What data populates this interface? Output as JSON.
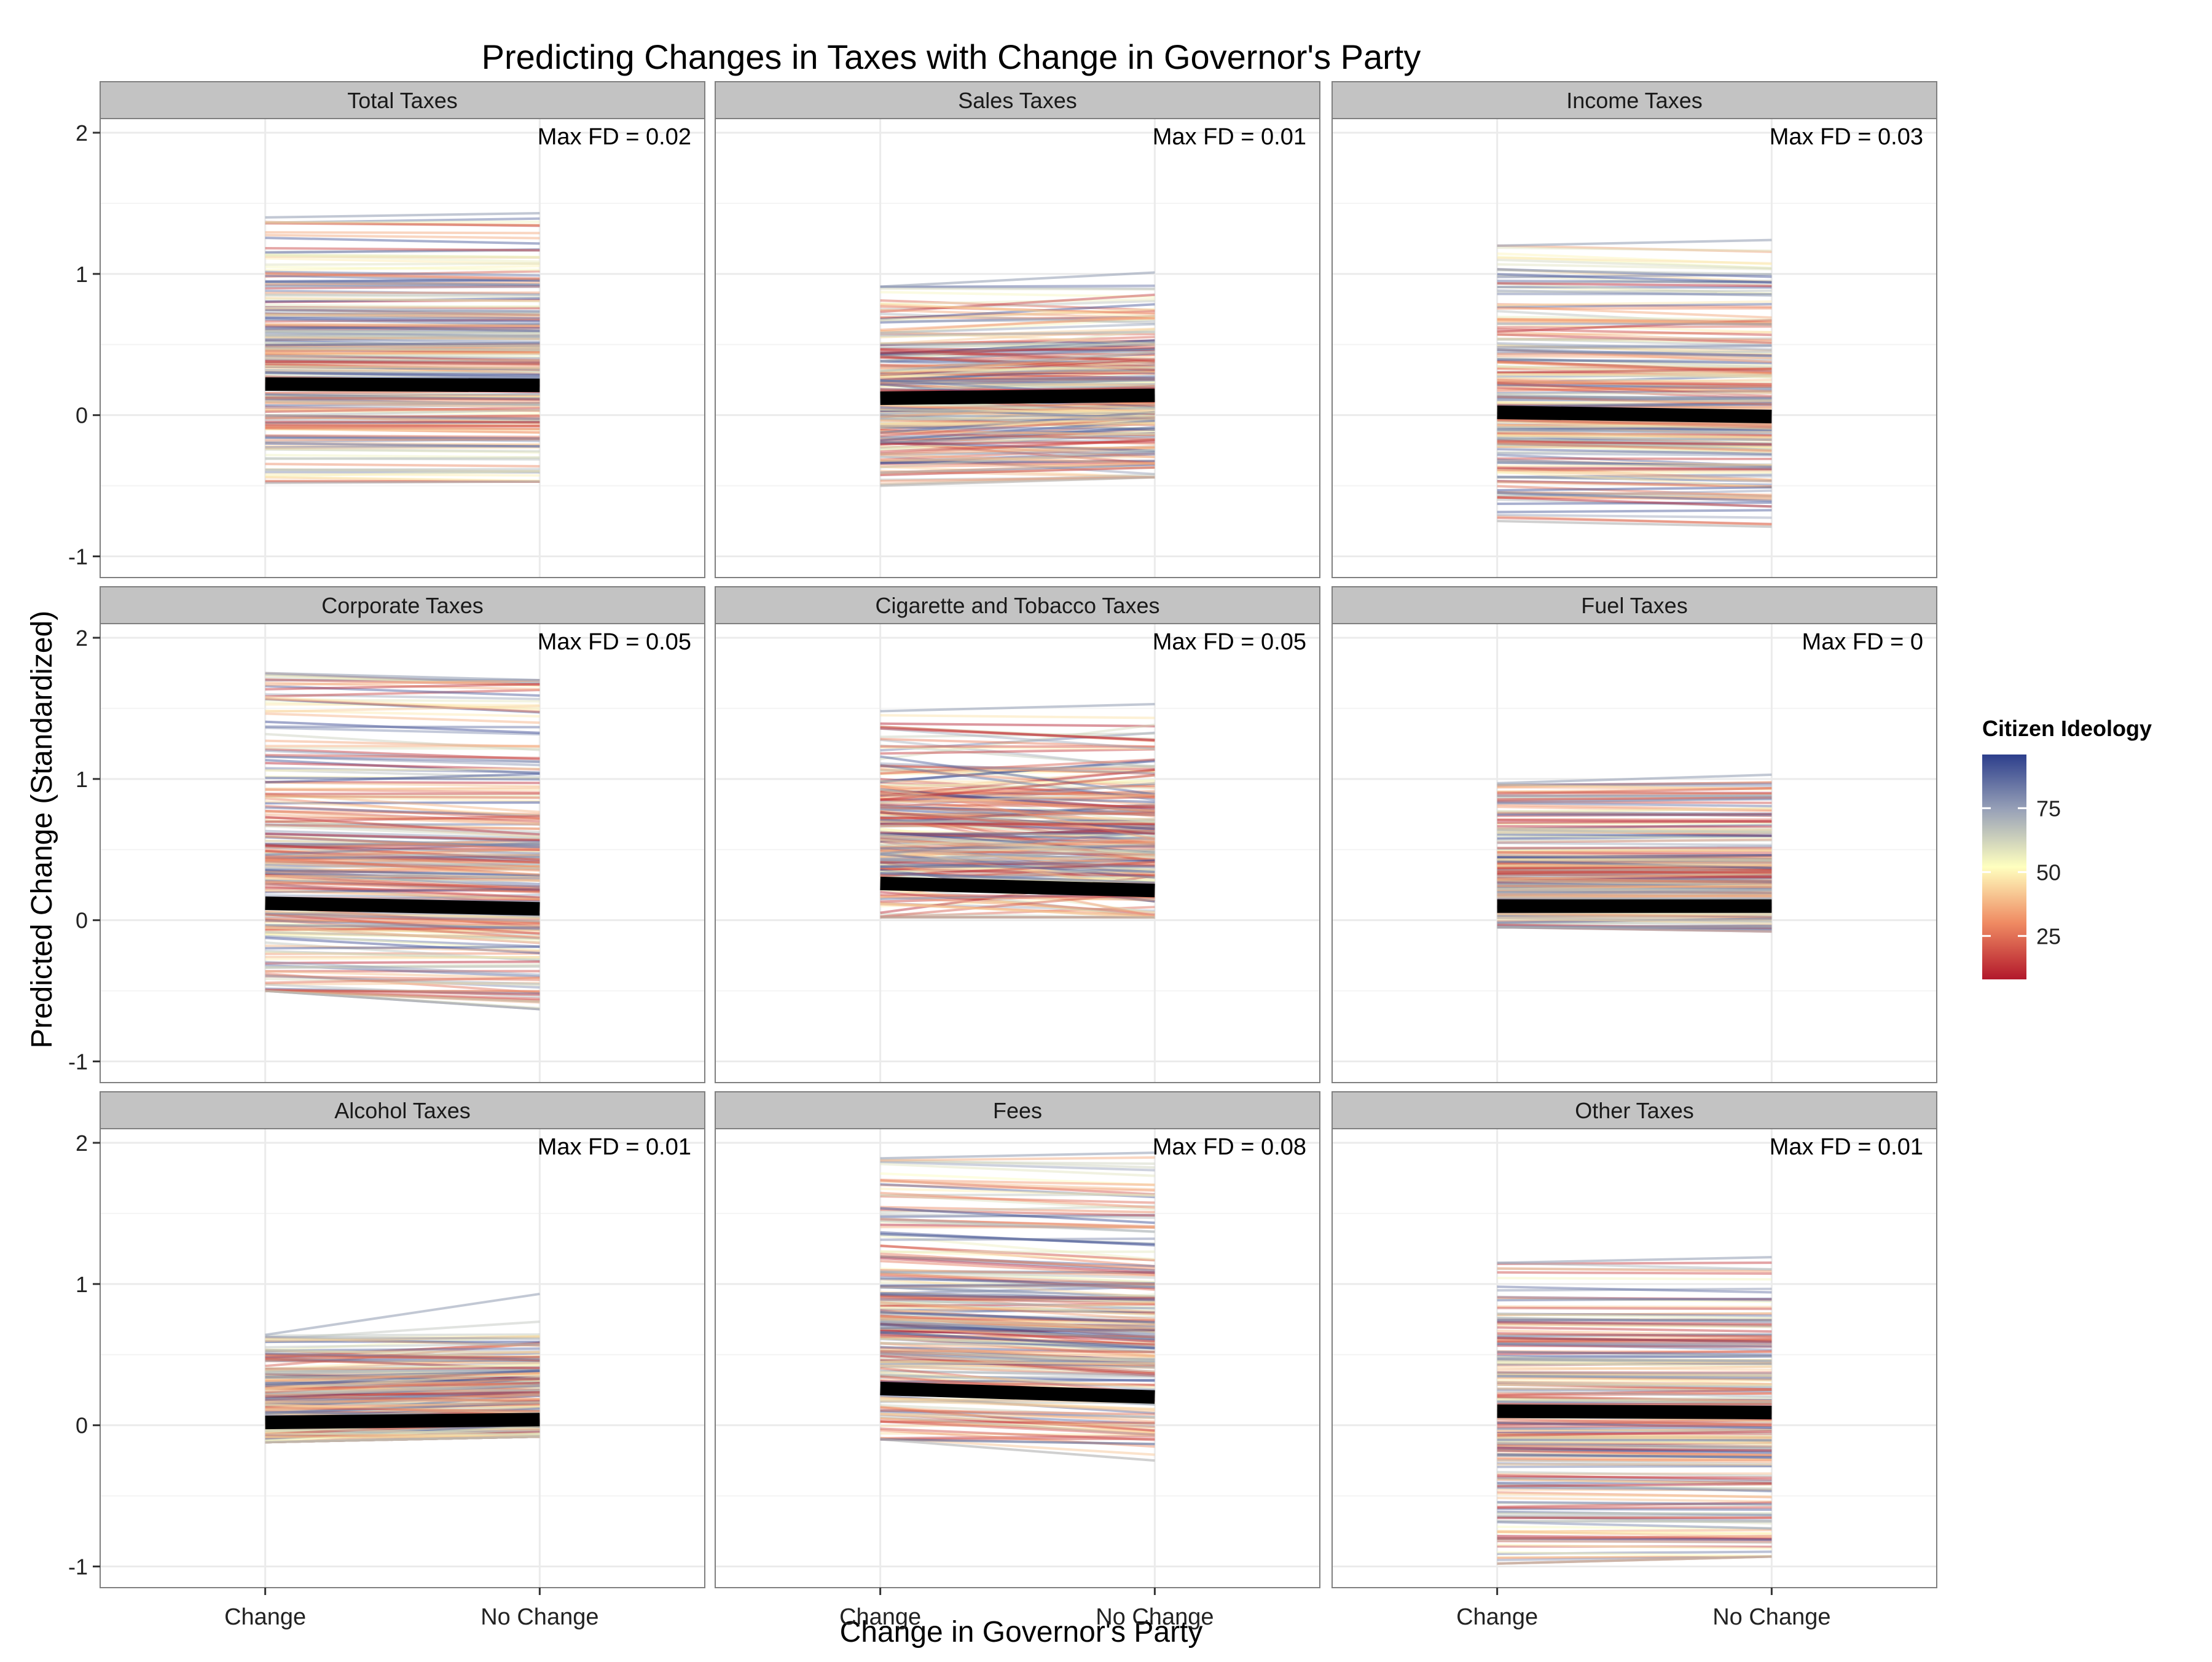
{
  "chart_data": {
    "type": "line",
    "title": "Predicting Changes in Taxes with Change in Governor's Party",
    "xlabel": "Change in Governor's Party",
    "ylabel": "Predicted Change (Standardized)",
    "x_categories": [
      "Change",
      "No Change"
    ],
    "ylim": [
      -1.15,
      2.1
    ],
    "y_ticks": [
      -1,
      0,
      1,
      2
    ],
    "grid": true,
    "legend": {
      "title": "Citizen Ideology",
      "placement": "right",
      "range": [
        8,
        96
      ],
      "ticks": [
        25,
        50,
        75
      ],
      "color_low": "#b2182b",
      "color_mid": "#ffffbf",
      "color_high": "#2c3e8c"
    },
    "panels": [
      {
        "title": "Total Taxes",
        "annotation": "Max FD = 0.02",
        "mean_line": [
          0.22,
          0.21
        ],
        "spread": {
          "change": [
            -0.48,
            1.4
          ],
          "no_change": [
            -0.47,
            1.43
          ]
        },
        "slope_sd": 0.02,
        "dense_center": 0.45
      },
      {
        "title": "Sales Taxes",
        "annotation": "Max FD = 0.01",
        "mean_line": [
          0.12,
          0.14
        ],
        "spread": {
          "change": [
            -0.5,
            0.91
          ],
          "no_change": [
            -0.44,
            1.01
          ]
        },
        "slope_sd": 0.07,
        "dense_center": 0.15
      },
      {
        "title": "Income Taxes",
        "annotation": "Max FD = 0.03",
        "mean_line": [
          0.02,
          -0.01
        ],
        "spread": {
          "change": [
            -0.75,
            1.2
          ],
          "no_change": [
            -0.79,
            1.24
          ]
        },
        "slope_sd": 0.03,
        "dense_center": 0.1
      },
      {
        "title": "Corporate Taxes",
        "annotation": "Max FD = 0.05",
        "mean_line": [
          0.12,
          0.08
        ],
        "spread": {
          "change": [
            -0.5,
            1.75
          ],
          "no_change": [
            -0.63,
            1.7
          ]
        },
        "slope_sd": 0.05,
        "dense_center": 0.25
      },
      {
        "title": "Cigarette and Tobacco Taxes",
        "annotation": "Max FD = 0.05",
        "mean_line": [
          0.26,
          0.21
        ],
        "spread": {
          "change": [
            0.02,
            1.48
          ],
          "no_change": [
            0.02,
            1.53
          ]
        },
        "slope_sd": 0.12,
        "dense_center": 0.55
      },
      {
        "title": "Fuel Taxes",
        "annotation": "Max FD = 0",
        "mean_line": [
          0.1,
          0.1
        ],
        "spread": {
          "change": [
            -0.05,
            0.97
          ],
          "no_change": [
            -0.08,
            1.03
          ]
        },
        "slope_sd": 0.02,
        "dense_center": 0.3
      },
      {
        "title": "Alcohol Taxes",
        "annotation": "Max FD = 0.01",
        "mean_line": [
          0.02,
          0.04
        ],
        "spread": {
          "change": [
            -0.12,
            0.64
          ],
          "no_change": [
            -0.08,
            0.93
          ]
        },
        "slope_sd": 0.06,
        "dense_center": 0.1
      },
      {
        "title": "Fees",
        "annotation": "Max FD = 0.08",
        "mean_line": [
          0.26,
          0.2
        ],
        "spread": {
          "change": [
            -0.1,
            1.89
          ],
          "no_change": [
            -0.25,
            1.93
          ]
        },
        "slope_sd": 0.05,
        "dense_center": 0.65
      },
      {
        "title": "Other Taxes",
        "annotation": "Max FD = 0.01",
        "mean_line": [
          0.1,
          0.09
        ],
        "spread": {
          "change": [
            -0.98,
            1.15
          ],
          "no_change": [
            -0.93,
            1.19
          ]
        },
        "slope_sd": 0.02,
        "dense_center": 0.1
      }
    ]
  }
}
